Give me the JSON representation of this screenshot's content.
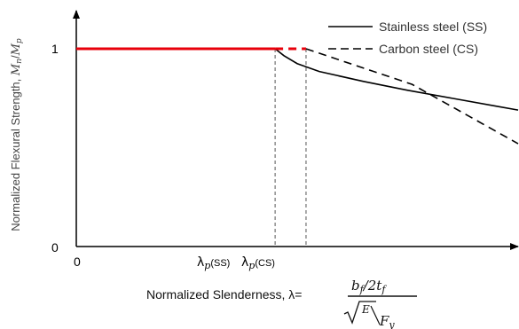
{
  "chart_data": {
    "type": "line",
    "xlim": [
      0,
      1
    ],
    "ylim": [
      0,
      1.2
    ],
    "grid": false,
    "legend_position": "top-right",
    "y_ticks": [
      {
        "value": 0,
        "label": "0"
      },
      {
        "value": 1,
        "label": "1"
      }
    ],
    "x_ticks": [
      {
        "value": 0,
        "label": "0"
      }
    ],
    "ylabel": {
      "text": "Normalized Flexural Strength, ",
      "math_M_n": "M",
      "math_n": "n",
      "slash": "/",
      "math_M_p": "M",
      "math_p": "p"
    },
    "xlabel": {
      "text": "Normalized Slenderness, λ=",
      "b": "b",
      "f": "f",
      "slash": "/",
      "two_t": "2t",
      "f2": "f",
      "E": "E",
      "F": "F",
      "y": "y"
    },
    "markers": [
      {
        "x": 0.45,
        "lambda": "λ",
        "sub": "p",
        "tag": "(SS)"
      },
      {
        "x": 0.52,
        "lambda": "λ",
        "sub": "p",
        "tag": "(CS)"
      }
    ],
    "plateau": {
      "x": [
        0,
        0.52
      ],
      "y": 1,
      "color": "#e8000b"
    },
    "series": [
      {
        "name": "Stainless steel (SS)",
        "style": "solid",
        "color": "#000000",
        "x": [
          0.45,
          0.47,
          0.5,
          0.55,
          0.65,
          0.75,
          0.85,
          0.95,
          1.0
        ],
        "y": [
          1.0,
          0.965,
          0.925,
          0.885,
          0.835,
          0.79,
          0.75,
          0.71,
          0.69
        ]
      },
      {
        "name": "Carbon steel (CS)",
        "style": "dashed",
        "color": "#000000",
        "x": [
          0.52,
          0.76,
          1.0
        ],
        "y": [
          1.0,
          0.82,
          0.52
        ]
      }
    ]
  }
}
